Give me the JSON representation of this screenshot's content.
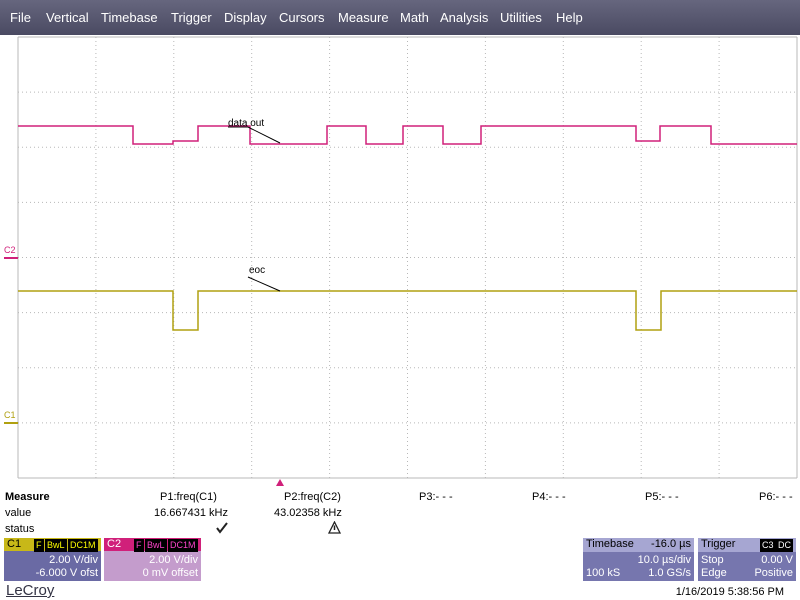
{
  "menu": [
    "File",
    "Vertical",
    "Timebase",
    "Trigger",
    "Display",
    "Cursors",
    "Measure",
    "Math",
    "Analysis",
    "Utilities",
    "Help"
  ],
  "traces": {
    "data_out_label": "data out",
    "eoc_label": "eoc",
    "c2_marker": "C2",
    "c1_marker": "C1"
  },
  "measure": {
    "title": "Measure",
    "headers": [
      "P1:freq(C1)",
      "P2:freq(C2)",
      "P3:- - -",
      "P4:- - -",
      "P5:- - -",
      "P6:- - -"
    ],
    "row_labels": [
      "value",
      "status"
    ],
    "values": [
      "16.667431 kHz",
      "43.02358 kHz"
    ]
  },
  "channels": [
    {
      "name": "C1",
      "tags": [
        "F",
        "BwL",
        "DC1M"
      ],
      "scale": "2.00 V/div",
      "offset": "-6.000 V ofst"
    },
    {
      "name": "C2",
      "tags": [
        "F",
        "BwL",
        "DC1M"
      ],
      "scale": "2.00 V/div",
      "offset": "0 mV offset"
    }
  ],
  "timebase": {
    "title": "Timebase",
    "delay": "-16.0 µs",
    "scale": "10.0 µs/div",
    "samples": "100 kS",
    "rate": "1.0 GS/s"
  },
  "trigger": {
    "title": "Trigger",
    "source": "C3",
    "coupling": "DC",
    "mode": "Stop",
    "level": "0.00 V",
    "type": "Edge",
    "slope": "Positive"
  },
  "footer": {
    "brand": "LeCroy",
    "timestamp": "1/16/2019 5:38:56 PM"
  }
}
